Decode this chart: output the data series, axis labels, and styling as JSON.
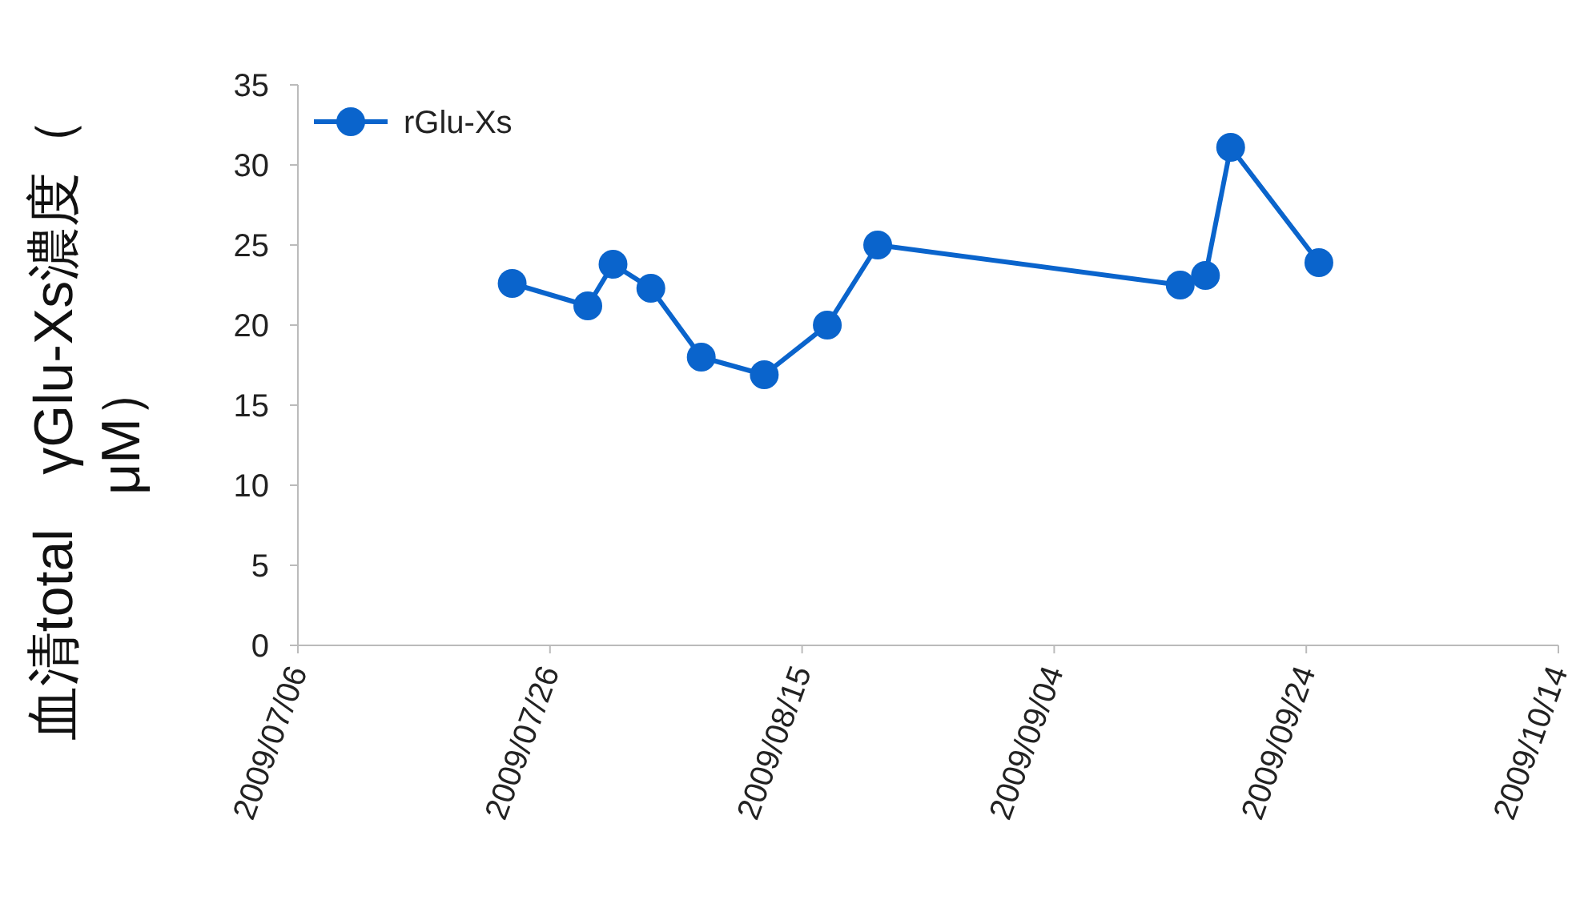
{
  "chart_data": {
    "type": "line",
    "ylabel": "血清total　γGlu-Xs濃度（μM）",
    "x": [
      "2009-07-23",
      "2009-07-29",
      "2009-07-31",
      "2009-08-03",
      "2009-08-07",
      "2009-08-12",
      "2009-08-17",
      "2009-08-21",
      "2009-09-14",
      "2009-09-16",
      "2009-09-18",
      "2009-09-25"
    ],
    "series": [
      {
        "name": "rGlu-Xs",
        "color": "#0a64cc",
        "values": [
          22.6,
          21.2,
          23.8,
          22.3,
          18.0,
          16.9,
          20.0,
          25.0,
          22.5,
          23.1,
          31.1,
          23.9
        ]
      }
    ],
    "xlim": [
      "2009-07-06",
      "2009-10-14"
    ],
    "xticks": [
      {
        "value": "2009-07-06",
        "label": "2009/07/06"
      },
      {
        "value": "2009-07-26",
        "label": "2009/07/26"
      },
      {
        "value": "2009-08-15",
        "label": "2009/08/15"
      },
      {
        "value": "2009-09-04",
        "label": "2009/09/04"
      },
      {
        "value": "2009-09-24",
        "label": "2009/09/24"
      },
      {
        "value": "2009-10-14",
        "label": "2009/10/14"
      }
    ],
    "ylim": [
      0,
      35
    ],
    "yticks": [
      0,
      5,
      10,
      15,
      20,
      25,
      30,
      35
    ],
    "marker": "circle",
    "line_style": "solid",
    "grid": false,
    "legend": "top left"
  }
}
